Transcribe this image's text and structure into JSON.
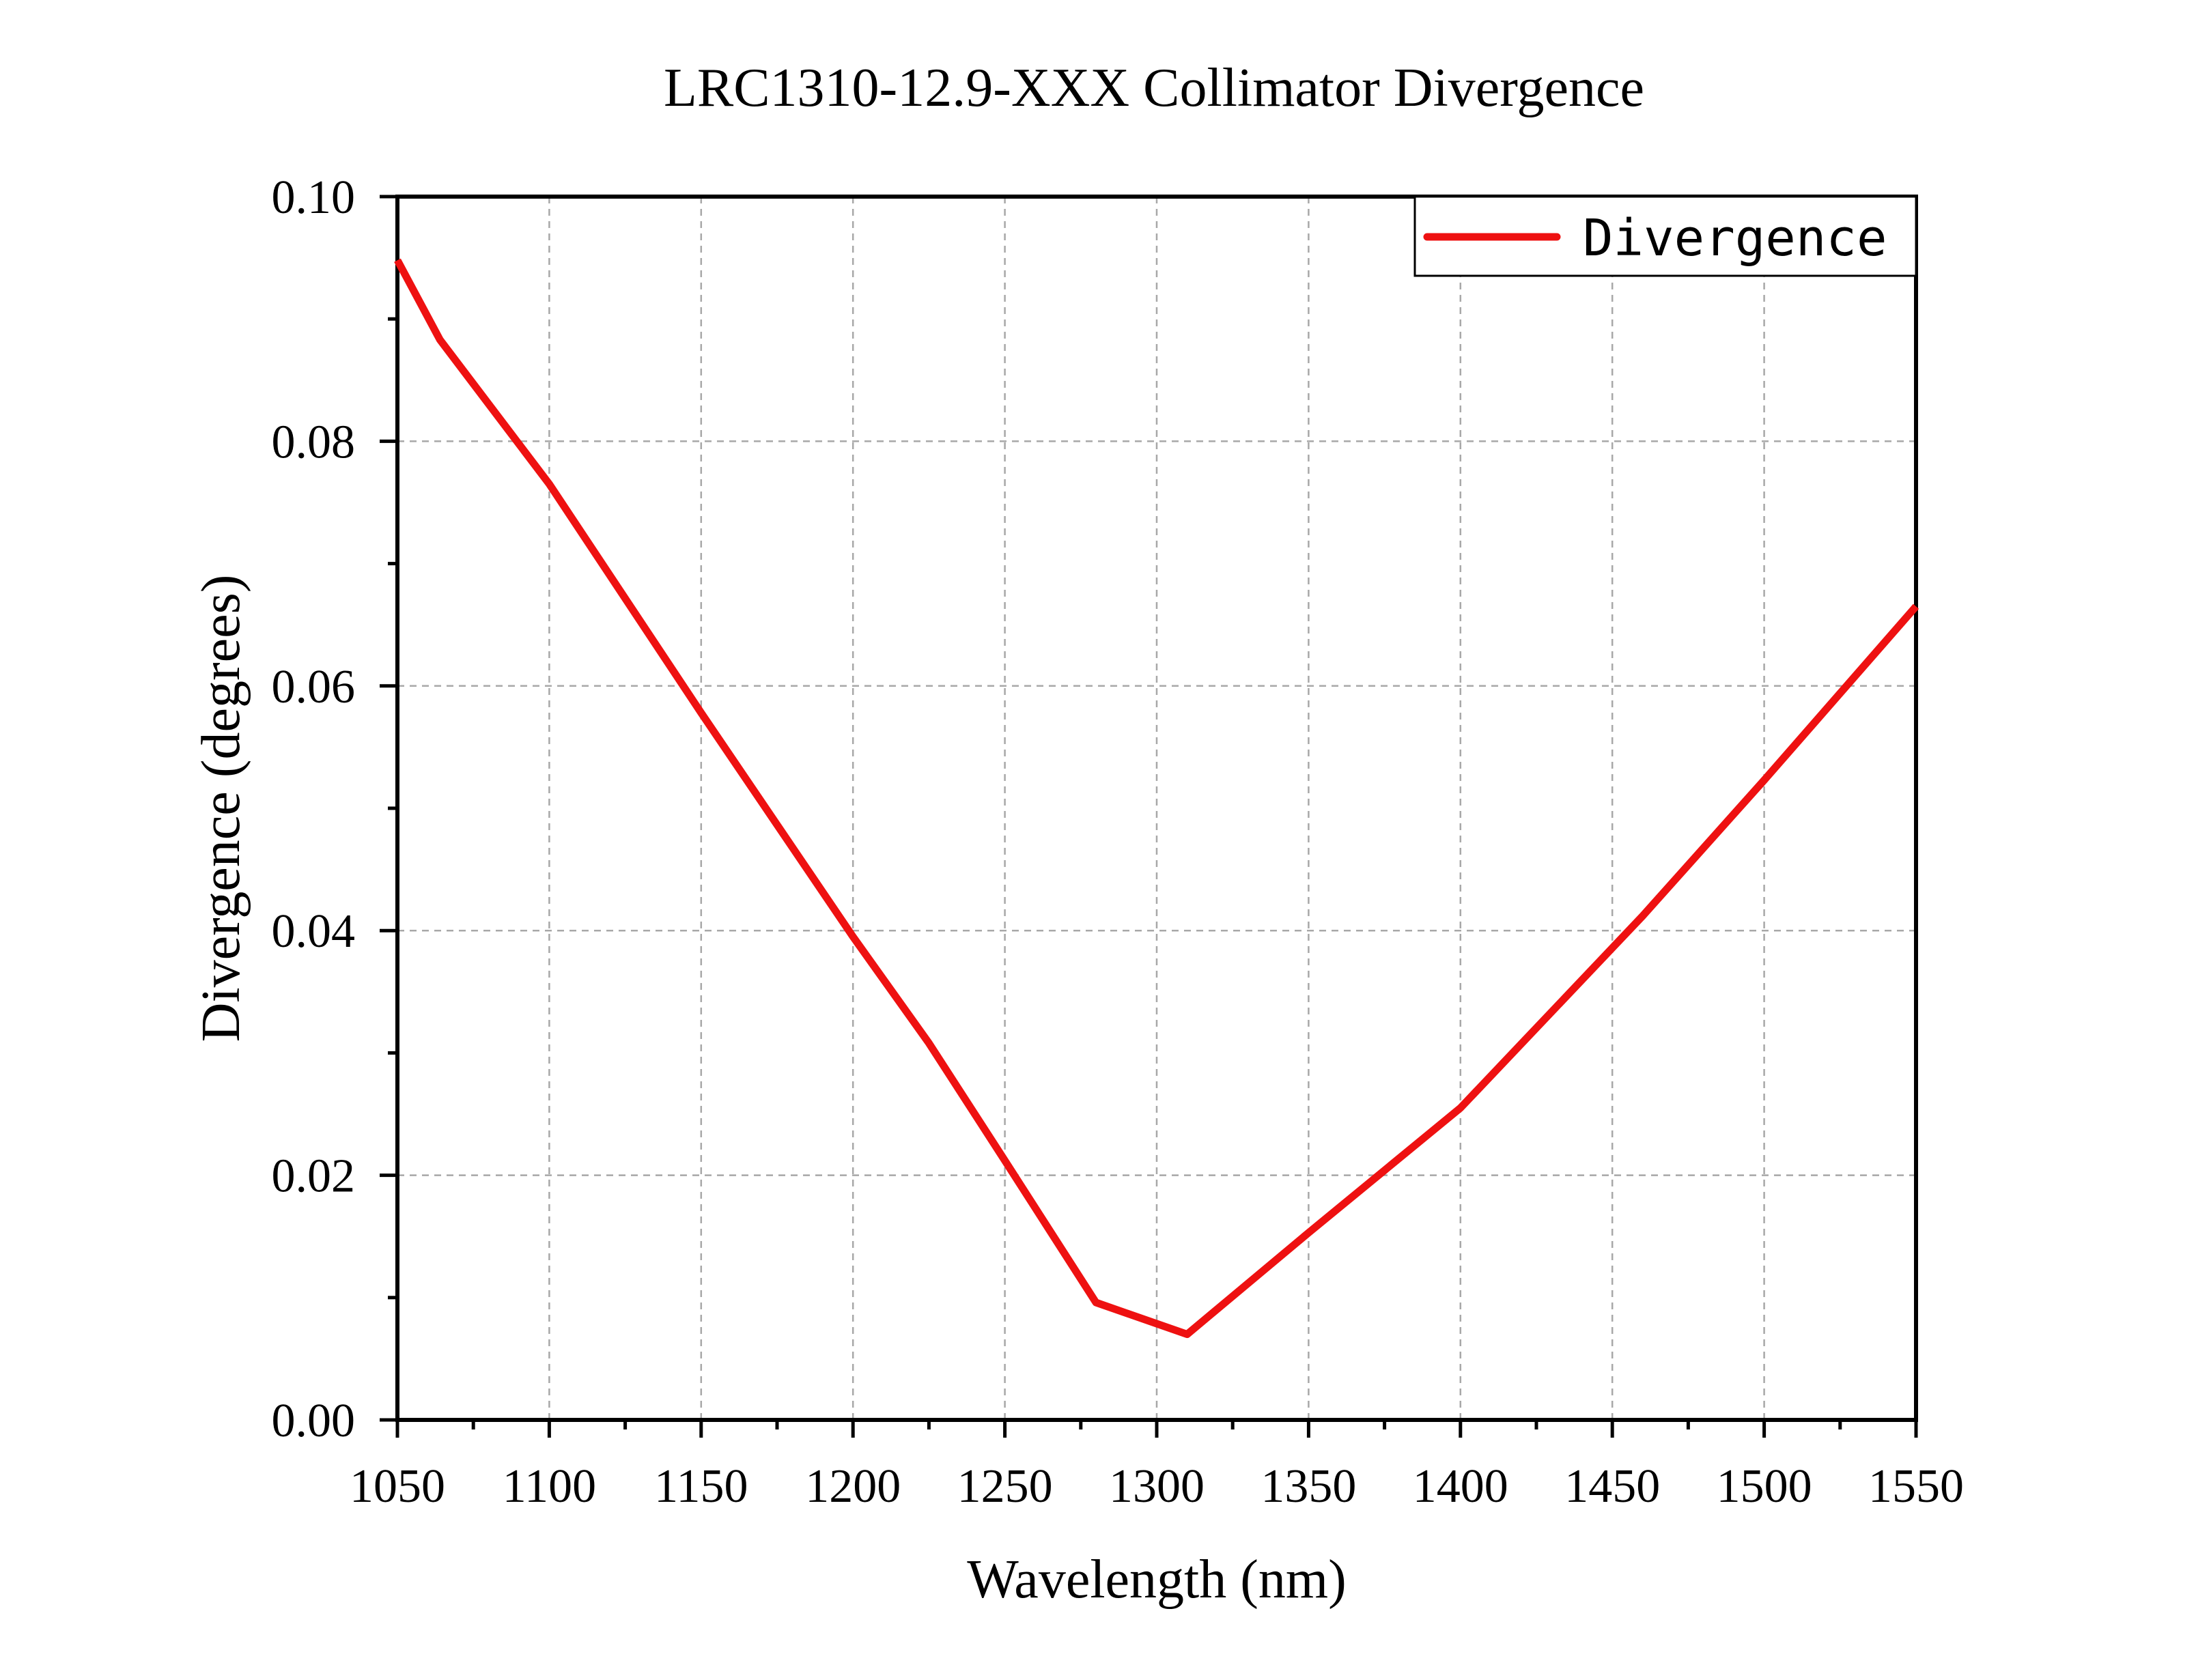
{
  "chart_data": {
    "type": "line",
    "title": "LRC1310-12.9-XXX Collimator Divergence",
    "xlabel": "Wavelength (nm)",
    "ylabel": "Divergence (degrees)",
    "xlim": [
      1050,
      1550
    ],
    "ylim": [
      0,
      0.1
    ],
    "xticks": [
      1050,
      1100,
      1150,
      1200,
      1250,
      1300,
      1350,
      1400,
      1450,
      1500,
      1550
    ],
    "xtick_labels": [
      "1050",
      "1100",
      "1150",
      "1200",
      "1250",
      "1300",
      "1350",
      "1400",
      "1450",
      "1500",
      "1550"
    ],
    "yticks": [
      0,
      0.02,
      0.04,
      0.06,
      0.08,
      0.1
    ],
    "ytick_labels": [
      "0.00",
      "0.02",
      "0.04",
      "0.06",
      "0.08",
      "0.10"
    ],
    "grid": true,
    "legend_position": "top-right",
    "series": [
      {
        "name": "Divergence",
        "color": "#ee1111",
        "x": [
          1050,
          1064,
          1100,
          1150,
          1200,
          1225,
          1250,
          1280,
          1310,
          1350,
          1400,
          1460,
          1500,
          1550
        ],
        "y": [
          0.0948,
          0.0883,
          0.0765,
          0.0578,
          0.0395,
          0.0308,
          0.0212,
          0.0096,
          0.007,
          0.0153,
          0.0255,
          0.0412,
          0.0523,
          0.0665
        ]
      }
    ]
  }
}
